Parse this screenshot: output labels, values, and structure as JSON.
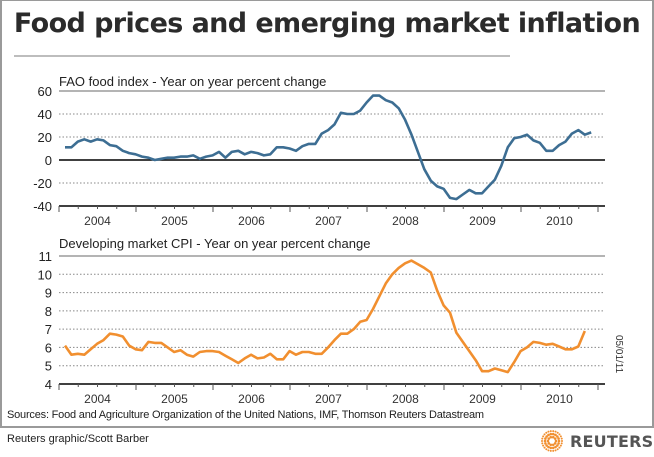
{
  "header": {
    "title": "Food prices and emerging market inflation"
  },
  "footer": {
    "sources": "Sources: Food and Agriculture Organization of the United Nations, IMF, Thomson Reuters Datastream",
    "credit": "Reuters graphic/Scott Barber",
    "date": "05/01/11",
    "logo_text": "REUTERS",
    "logo_icon": "reuters-dot-ring-icon"
  },
  "colors": {
    "fao_line": "#3d6e93",
    "cpi_line": "#f18f2f",
    "logo_orange": "#f18f2f",
    "text": "#222222"
  },
  "chart_data": [
    {
      "type": "line",
      "title": "FAO food index - Year on year percent change",
      "xlabel": "",
      "ylabel": "",
      "x_start": "2004-01",
      "x_step": "month",
      "x_tick_labels": [
        "2004",
        "2005",
        "2006",
        "2007",
        "2008",
        "2009",
        "2010"
      ],
      "ylim": [
        -40,
        60
      ],
      "y_ticks": [
        60,
        40,
        20,
        0,
        -20,
        -40
      ],
      "grid": true,
      "series": [
        {
          "name": "FAO food index",
          "values": [
            11,
            11,
            16,
            18,
            16,
            18,
            17,
            13,
            12,
            8,
            6,
            5,
            3,
            2,
            0,
            1,
            2,
            2,
            3,
            3,
            4,
            1,
            3,
            4,
            7,
            2,
            7,
            8,
            5,
            7,
            6,
            4,
            5,
            11,
            11,
            10,
            8,
            12,
            14,
            14,
            23,
            26,
            31,
            41,
            40,
            40,
            43,
            50,
            56,
            56,
            52,
            50,
            45,
            35,
            22,
            7,
            -8,
            -18,
            -23,
            -25,
            -33,
            -34,
            -30,
            -26,
            -29,
            -29,
            -23,
            -17,
            -5,
            11,
            19,
            20,
            22,
            17,
            15,
            8,
            8,
            13,
            16,
            23,
            26,
            22,
            24
          ]
        }
      ]
    },
    {
      "type": "line",
      "title": "Developing market CPI - Year on year percent change",
      "xlabel": "",
      "ylabel": "",
      "x_start": "2004-01",
      "x_step": "month",
      "x_tick_labels": [
        "2004",
        "2005",
        "2006",
        "2007",
        "2008",
        "2009",
        "2010"
      ],
      "ylim": [
        4,
        11
      ],
      "y_ticks": [
        11,
        10,
        9,
        8,
        7,
        6,
        5,
        4
      ],
      "grid": true,
      "series": [
        {
          "name": "Developing market CPI",
          "values": [
            6.1,
            5.6,
            5.65,
            5.6,
            5.9,
            6.2,
            6.4,
            6.75,
            6.7,
            6.6,
            6.1,
            5.9,
            5.85,
            6.3,
            6.25,
            6.25,
            6.0,
            5.75,
            5.85,
            5.6,
            5.5,
            5.75,
            5.8,
            5.8,
            5.75,
            5.55,
            5.35,
            5.15,
            5.4,
            5.6,
            5.4,
            5.45,
            5.65,
            5.35,
            5.35,
            5.8,
            5.6,
            5.75,
            5.75,
            5.65,
            5.65,
            6.0,
            6.4,
            6.75,
            6.75,
            7.0,
            7.4,
            7.5,
            8.1,
            8.8,
            9.5,
            10.0,
            10.35,
            10.6,
            10.75,
            10.55,
            10.35,
            10.1,
            9.1,
            8.3,
            7.9,
            6.8,
            6.3,
            5.8,
            5.3,
            4.7,
            4.7,
            4.85,
            4.75,
            4.65,
            5.2,
            5.8,
            6.0,
            6.3,
            6.25,
            6.15,
            6.2,
            6.05,
            5.9,
            5.9,
            6.05,
            6.9
          ]
        }
      ]
    }
  ]
}
